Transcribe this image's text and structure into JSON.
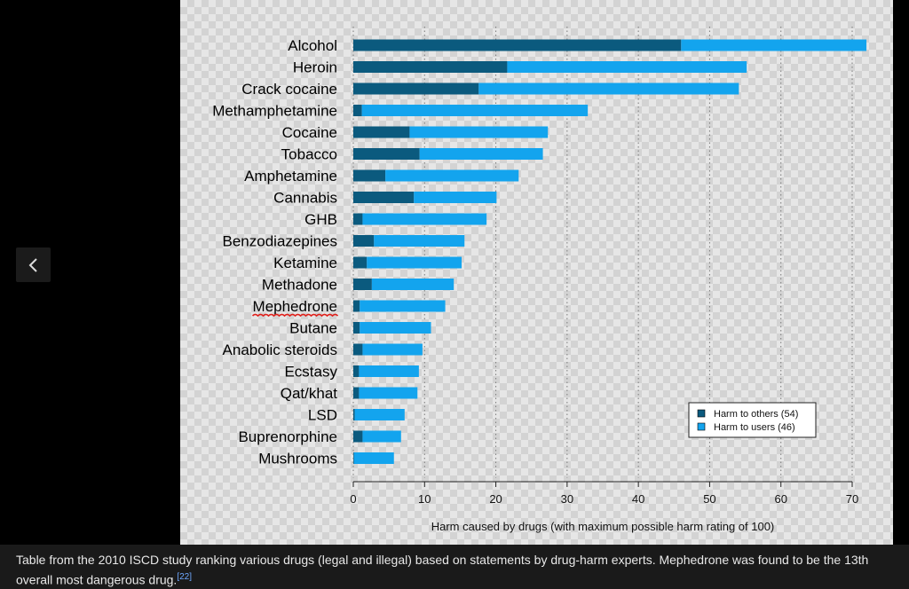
{
  "viewer": {
    "prev_button_icon": "chevron-left-icon",
    "caption": "Table from the 2010 ISCD study ranking various drugs (legal and illegal) based on statements by drug-harm experts. Mephedrone was found to be the 13th overall most dangerous drug.",
    "caption_ref": "[22]"
  },
  "chart_data": {
    "type": "bar",
    "orientation": "horizontal",
    "stacked": true,
    "categories": [
      "Alcohol",
      "Heroin",
      "Crack cocaine",
      "Methamphetamine",
      "Cocaine",
      "Tobacco",
      "Amphetamine",
      "Cannabis",
      "GHB",
      "Benzodiazepines",
      "Ketamine",
      "Methadone",
      "Mephedrone",
      "Butane",
      "Anabolic steroids",
      "Ecstasy",
      "Qat/khat",
      "LSD",
      "Buprenorphine",
      "Mushrooms"
    ],
    "series": [
      {
        "name": "Harm to others (54)",
        "color": "#0b5a7e",
        "values": [
          46,
          21.6,
          17.6,
          1.2,
          7.9,
          9.3,
          4.5,
          8.5,
          1.3,
          2.9,
          1.9,
          2.6,
          0.9,
          0.9,
          1.3,
          0.8,
          0.8,
          0.2,
          1.3,
          0.1
        ]
      },
      {
        "name": "Harm to users (46)",
        "color": "#13a4ee",
        "values": [
          26,
          33.6,
          36.5,
          31.7,
          19.4,
          17.3,
          18.7,
          11.6,
          17.4,
          12.7,
          13.3,
          11.5,
          12.0,
          10.0,
          8.4,
          8.4,
          8.2,
          7.0,
          5.4,
          5.6
        ]
      }
    ],
    "xlabel": "Harm caused by drugs (with maximum possible harm rating of 100)",
    "ylabel": "",
    "xlim": [
      0,
      72
    ],
    "xticks": [
      0,
      10,
      20,
      30,
      40,
      50,
      60,
      70
    ],
    "grid": "vertical dotted",
    "legend_position": "bottom-right",
    "annotation": {
      "type": "red squiggly underline",
      "target": "Mephedrone",
      "color": "#e0201b"
    }
  }
}
